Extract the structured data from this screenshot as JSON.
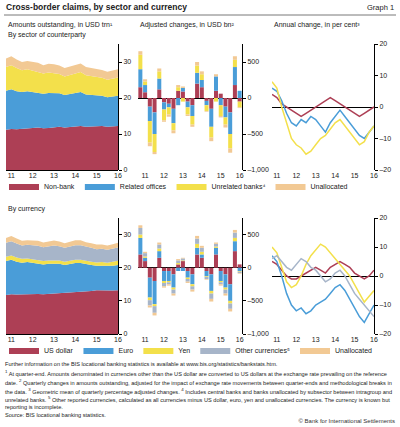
{
  "title": "Cross-border claims, by sector and currency",
  "graph_label": "Graph 1",
  "row_titles": [
    "By sector of counterparty",
    "By currency"
  ],
  "further_information": "Further information on the BIS locational banking statistics is available at www.bis.org/statistics/bankstats.htm.",
  "footnotes": [
    {
      "mark": "1",
      "text": "At quarter-end. Amounts denominated in currencies other than the US dollar are converted to US dollars at the exchange rate prevailing on the reference date."
    },
    {
      "mark": "2",
      "text": "Quarterly changes in amounts outstanding, adjusted for the impact of exchange rate movements between quarter-ends and methodological breaks in the data."
    },
    {
      "mark": "3",
      "text": "Geometric mean of quarterly percentage adjusted changes."
    },
    {
      "mark": "4",
      "text": "Includes central banks and banks unallocated by subsector between intragroup and unrelated banks."
    },
    {
      "mark": "5",
      "text": "Other reported currencies, calculated as all currencies minus US dollar, euro, yen and unallocated currencies. The currency is known but reporting is incomplete."
    }
  ],
  "source": "Source: BIS locational banking statistics.",
  "copyright": "© Bank for International Settlements",
  "chart_data": [
    {
      "type": "area",
      "title": "Amounts outstanding, in USD trn¹",
      "stacked": true,
      "legend": "bottom",
      "grid": false,
      "categories": [
        null,
        "11",
        null,
        null,
        null,
        "12",
        null,
        null,
        null,
        "13",
        null,
        null,
        null,
        "14",
        null,
        null,
        null,
        "15",
        null,
        null,
        null,
        "16"
      ],
      "ylim": [
        0,
        35
      ],
      "yticks": [
        0,
        10,
        20,
        30
      ],
      "series": [
        {
          "name": "Non-bank",
          "color": "#ad3f55",
          "values": [
            11.2,
            11.4,
            11.3,
            11.5,
            11.6,
            11.7,
            11.8,
            11.6,
            11.7,
            11.9,
            12.0,
            11.8,
            11.9,
            12.0,
            12.2,
            12.0,
            12.1,
            12.3,
            12.2,
            12.0,
            12.1,
            12.2
          ]
        },
        {
          "name": "Related offices",
          "color": "#4a9dd8",
          "values": [
            10.8,
            11.0,
            10.6,
            10.2,
            10.3,
            10.0,
            9.8,
            9.6,
            9.7,
            9.5,
            9.3,
            9.0,
            9.2,
            9.4,
            9.5,
            9.0,
            8.8,
            8.5,
            8.4,
            8.2,
            8.3,
            8.4
          ]
        },
        {
          "name": "Unrelated banks⁴",
          "color": "#f3e04b",
          "values": [
            6.6,
            6.7,
            6.4,
            6.0,
            6.1,
            5.9,
            5.8,
            5.6,
            5.7,
            5.6,
            5.4,
            5.2,
            5.3,
            5.4,
            5.5,
            5.3,
            5.2,
            5.0,
            5.0,
            4.9,
            5.0,
            5.1
          ]
        },
        {
          "name": "Unallocated",
          "color": "#f2c994",
          "values": [
            2.4,
            2.5,
            2.4,
            2.3,
            2.3,
            2.4,
            2.4,
            2.3,
            2.4,
            2.4,
            2.3,
            2.3,
            2.3,
            2.4,
            2.4,
            2.3,
            2.3,
            2.3,
            2.2,
            2.2,
            2.3,
            2.3
          ]
        }
      ]
    },
    {
      "type": "bar",
      "title": "Adjusted changes, in USD bn²",
      "stacked": true,
      "grid": false,
      "categories": [
        null,
        "11",
        null,
        null,
        null,
        "12",
        null,
        null,
        null,
        "13",
        null,
        null,
        null,
        "14",
        null,
        null,
        null,
        "15",
        null,
        null,
        null,
        "16"
      ],
      "ylim": [
        -1000,
        750
      ],
      "yticks": [
        {
          "value": -1000,
          "label": "–1,000"
        },
        {
          "value": -500,
          "label": "–500"
        },
        0,
        500
      ],
      "series": [
        {
          "name": "Non-bank",
          "color": "#ad3f55",
          "values": [
            150,
            80,
            -120,
            -200,
            120,
            -60,
            -80,
            -150,
            100,
            90,
            -50,
            -100,
            200,
            150,
            -40,
            -150,
            100,
            60,
            -120,
            -200,
            180,
            -50
          ]
        },
        {
          "name": "Related offices",
          "color": "#4a9dd8",
          "values": [
            250,
            100,
            -200,
            -300,
            150,
            -100,
            -50,
            -200,
            -100,
            50,
            -80,
            -150,
            150,
            100,
            -60,
            -250,
            200,
            -100,
            -150,
            -300,
            250,
            100
          ]
        },
        {
          "name": "Unrelated banks⁴",
          "color": "#f3e04b",
          "values": [
            200,
            50,
            -300,
            -250,
            100,
            -150,
            -100,
            -100,
            50,
            -50,
            -100,
            -120,
            100,
            80,
            -80,
            -150,
            -50,
            -150,
            -100,
            -200,
            100,
            -80
          ]
        },
        {
          "name": "Unallocated",
          "color": "#f2c994",
          "values": [
            50,
            30,
            -50,
            -30,
            40,
            -20,
            -30,
            -40,
            30,
            20,
            -20,
            -30,
            50,
            40,
            -10,
            -50,
            30,
            -20,
            -40,
            -60,
            50,
            -10
          ]
        }
      ]
    },
    {
      "type": "line",
      "title": "Annual change, in per cent³",
      "grid": false,
      "categories": [
        null,
        "11",
        null,
        null,
        null,
        "12",
        null,
        null,
        null,
        "13",
        null,
        null,
        null,
        "14",
        null,
        null,
        null,
        "15",
        null,
        null,
        null,
        "16"
      ],
      "ylim": [
        -20,
        20
      ],
      "yticks": [
        {
          "value": -20,
          "label": "–20"
        },
        {
          "value": -10,
          "label": "–10"
        },
        0,
        10,
        20
      ],
      "series": [
        {
          "name": "Non-bank",
          "color": "#ad3f55",
          "values": [
            4,
            3,
            1,
            0,
            -1,
            -2,
            -3,
            -2,
            -1,
            0,
            1,
            2,
            3,
            2,
            1,
            0,
            -1,
            -2,
            -3,
            -2,
            -1,
            0
          ]
        },
        {
          "name": "Related offices",
          "color": "#4a9dd8",
          "values": [
            6,
            5,
            2,
            -2,
            -5,
            -6,
            -4,
            -5,
            -3,
            -4,
            -6,
            -8,
            -5,
            -3,
            -1,
            -3,
            -5,
            -7,
            -9,
            -10,
            -8,
            -6
          ]
        },
        {
          "name": "Unrelated banks⁴",
          "color": "#f3e04b",
          "values": [
            8,
            6,
            0,
            -5,
            -10,
            -12,
            -13,
            -15,
            -14,
            -12,
            -10,
            -9,
            -7,
            -5,
            -4,
            -6,
            -8,
            -10,
            -12,
            -11,
            -8,
            -6
          ]
        }
      ]
    },
    {
      "type": "area",
      "stacked": true,
      "legend": "bottom",
      "grid": false,
      "categories": [
        null,
        "11",
        null,
        null,
        null,
        "12",
        null,
        null,
        null,
        "13",
        null,
        null,
        null,
        "14",
        null,
        null,
        null,
        "15",
        null,
        null,
        null,
        "16"
      ],
      "ylim": [
        0,
        35
      ],
      "yticks": [
        0,
        10,
        20,
        30
      ],
      "series": [
        {
          "name": "US dollar",
          "color": "#ad3f55",
          "values": [
            11.8,
            12.0,
            11.9,
            12.0,
            12.1,
            12.2,
            12.1,
            12.0,
            12.1,
            12.3,
            12.4,
            12.3,
            12.5,
            12.7,
            12.8,
            12.9,
            13.0,
            13.2,
            13.1,
            13.0,
            13.1,
            13.2
          ]
        },
        {
          "name": "Euro",
          "color": "#4a9dd8",
          "values": [
            10.2,
            10.4,
            9.9,
            9.5,
            9.6,
            9.3,
            9.2,
            9.0,
            9.1,
            9.0,
            8.8,
            8.5,
            8.6,
            8.7,
            8.6,
            8.1,
            7.8,
            7.4,
            7.5,
            7.4,
            7.5,
            7.6
          ]
        },
        {
          "name": "Yen",
          "color": "#f3e04b",
          "values": [
            1.3,
            1.3,
            1.3,
            1.2,
            1.1,
            1.1,
            1.0,
            1.0,
            1.0,
            1.0,
            1.0,
            1.0,
            1.0,
            1.0,
            1.0,
            1.0,
            1.0,
            1.0,
            1.1,
            1.1,
            1.2,
            1.3
          ]
        },
        {
          "name": "Other currencies⁵",
          "color": "#a7b5c9",
          "values": [
            4.2,
            4.3,
            4.2,
            4.0,
            4.1,
            4.2,
            4.3,
            4.2,
            4.3,
            4.4,
            4.3,
            4.2,
            4.3,
            4.4,
            4.4,
            4.3,
            4.2,
            4.0,
            4.0,
            3.9,
            3.9,
            4.0
          ]
        },
        {
          "name": "Unallocated",
          "color": "#f2c994",
          "values": [
            1.5,
            1.6,
            1.5,
            1.4,
            1.4,
            1.5,
            1.5,
            1.4,
            1.5,
            1.5,
            1.4,
            1.4,
            1.4,
            1.5,
            1.5,
            1.4,
            1.4,
            1.4,
            1.3,
            1.3,
            1.4,
            1.4
          ]
        }
      ]
    },
    {
      "type": "bar",
      "stacked": true,
      "grid": false,
      "categories": [
        null,
        "11",
        null,
        null,
        null,
        "12",
        null,
        null,
        null,
        "13",
        null,
        null,
        null,
        "14",
        null,
        null,
        null,
        "15",
        null,
        null,
        null,
        "16"
      ],
      "ylim": [
        -1000,
        750
      ],
      "yticks": [
        {
          "value": -1000,
          "label": "–1,000"
        },
        {
          "value": -500,
          "label": "–500"
        },
        0,
        500
      ],
      "series": [
        {
          "name": "US dollar",
          "color": "#ad3f55",
          "values": [
            200,
            100,
            -150,
            -200,
            150,
            -50,
            -50,
            -100,
            50,
            100,
            -50,
            -100,
            200,
            150,
            -50,
            -100,
            200,
            -50,
            -100,
            -250,
            250,
            50
          ]
        },
        {
          "name": "Euro",
          "color": "#4a9dd8",
          "values": [
            250,
            50,
            -300,
            -350,
            100,
            -150,
            -150,
            -200,
            -50,
            -50,
            -100,
            -150,
            100,
            50,
            -80,
            -250,
            100,
            -150,
            -200,
            -250,
            150,
            -50
          ]
        },
        {
          "name": "Yen",
          "color": "#f3e04b",
          "values": [
            50,
            20,
            -40,
            -30,
            40,
            -30,
            -20,
            -30,
            20,
            10,
            -20,
            -30,
            60,
            40,
            -10,
            -40,
            20,
            -20,
            -30,
            -40,
            50,
            -10
          ]
        },
        {
          "name": "Other currencies⁵",
          "color": "#a7b5c9",
          "values": [
            100,
            50,
            -80,
            -100,
            60,
            -50,
            -30,
            -60,
            40,
            30,
            -40,
            -50,
            80,
            60,
            -30,
            -80,
            40,
            -30,
            -60,
            -80,
            80,
            -20
          ]
        },
        {
          "name": "Unallocated",
          "color": "#f2c994",
          "values": [
            40,
            20,
            -30,
            -40,
            30,
            -20,
            -20,
            -30,
            20,
            10,
            -20,
            -30,
            40,
            30,
            -10,
            -40,
            20,
            -20,
            -30,
            -40,
            40,
            -10
          ]
        }
      ]
    },
    {
      "type": "line",
      "grid": false,
      "categories": [
        null,
        "11",
        null,
        null,
        null,
        "12",
        null,
        null,
        null,
        "13",
        null,
        null,
        null,
        "14",
        null,
        null,
        null,
        "15",
        null,
        null,
        null,
        "16"
      ],
      "ylim": [
        -20,
        20
      ],
      "yticks": [
        {
          "value": -20,
          "label": "–20"
        },
        {
          "value": -10,
          "label": "–10"
        },
        0,
        10,
        20
      ],
      "series": [
        {
          "name": "US dollar",
          "color": "#ad3f55",
          "values": [
            5,
            4,
            2,
            0,
            -1,
            -1,
            0,
            1,
            2,
            3,
            2,
            1,
            3,
            4,
            5,
            4,
            3,
            1,
            0,
            -1,
            0,
            2
          ]
        },
        {
          "name": "Euro",
          "color": "#4a9dd8",
          "values": [
            7,
            5,
            0,
            -6,
            -10,
            -12,
            -11,
            -13,
            -12,
            -10,
            -9,
            -8,
            -6,
            -4,
            -3,
            -5,
            -8,
            -11,
            -14,
            -16,
            -13,
            -10
          ]
        },
        {
          "name": "Yen",
          "color": "#f3e04b",
          "values": [
            10,
            8,
            3,
            -2,
            -4,
            -3,
            0,
            4,
            7,
            9,
            11,
            10,
            8,
            6,
            4,
            2,
            0,
            -3,
            -6,
            -9,
            -7,
            -5
          ]
        },
        {
          "name": "Other currencies⁵",
          "color": "#a7b5c9",
          "values": [
            6,
            7,
            5,
            3,
            2,
            4,
            6,
            5,
            3,
            2,
            0,
            -2,
            -1,
            1,
            2,
            0,
            -3,
            -6,
            -8,
            -10,
            -12,
            -14
          ]
        }
      ]
    }
  ]
}
